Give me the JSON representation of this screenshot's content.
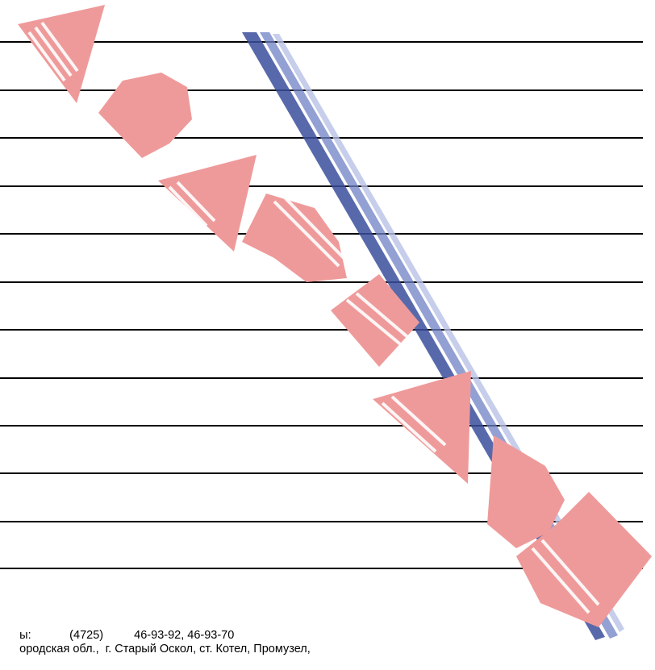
{
  "watermark": {
    "brand_letters": "АВАНТАЖ",
    "colors": {
      "letters": "#ef9a9a",
      "stripe_dark": "#3b4f9c",
      "stripe_light": "#b8c2e6"
    }
  },
  "ruled_lines_count": 12,
  "footer": {
    "phone_label": "ы:",
    "phone_code": "(4725)",
    "phone_numbers": "46-93-92, 46-93-70",
    "address": "ородская обл.,  г. Старый Оскол, ст. Котел, Промузел,"
  }
}
